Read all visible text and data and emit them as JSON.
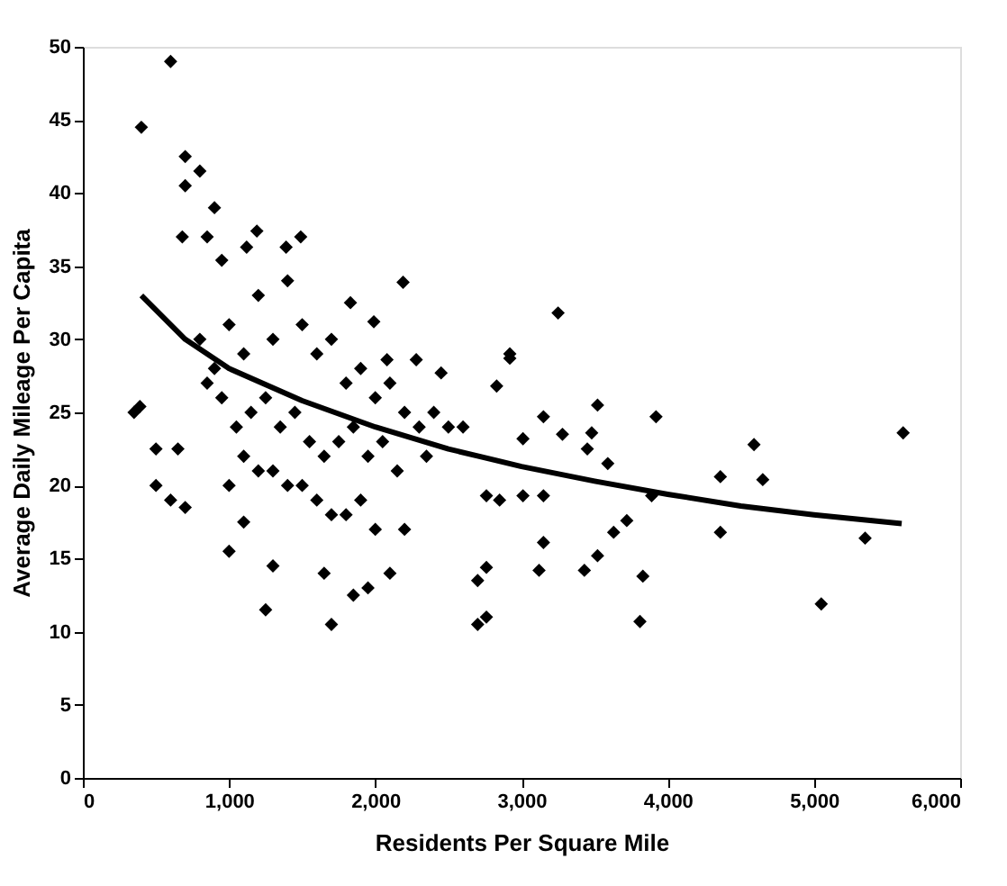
{
  "chart_data": {
    "type": "scatter",
    "xlabel": "Residents Per Square Mile",
    "ylabel": "Average Daily Mileage Per Capita",
    "xlim": [
      0,
      6000
    ],
    "xticks": [
      0,
      {
        "value": 1000,
        "label": "1,000"
      },
      {
        "value": 2000,
        "label": "2,000"
      },
      {
        "value": 3000,
        "label": "3,000"
      },
      {
        "value": 4000,
        "label": "4,000"
      },
      {
        "value": 5000,
        "label": "5,000"
      },
      {
        "value": 6000,
        "label": "6,000"
      }
    ],
    "ylim": [
      0,
      50
    ],
    "yticks": [
      0,
      5,
      10,
      15,
      20,
      25,
      30,
      35,
      40,
      45,
      50
    ],
    "grid": false,
    "marker": "diamond",
    "series": [
      {
        "color": "#000000",
        "x": [
          600,
          400,
          700,
          800,
          700,
          900,
          350,
          500,
          500,
          650,
          600,
          700,
          1000,
          1100,
          1250,
          1300,
          1650,
          1700,
          1850,
          1950,
          2100,
          2200,
          2700,
          2700,
          2850,
          3250,
          2920,
          2830,
          3520,
          3920,
          3150,
          3280,
          3480,
          3010,
          4590,
          5610,
          3450,
          3590,
          4360,
          4650,
          3890,
          3150,
          3010,
          2760,
          3720,
          3630,
          4360,
          5350,
          3520,
          3430,
          3150,
          3120,
          2760,
          3830,
          3810,
          5050,
          2760,
          680,
          850,
          1190,
          1490,
          1390,
          2190,
          1120,
          950,
          1830,
          1990,
          2280,
          2450,
          2080,
          2920,
          390,
          800,
          900,
          1000,
          1100,
          1200,
          1300,
          1400,
          1500,
          1600,
          1700,
          1800,
          1900,
          2000,
          2100,
          2200,
          2300,
          2400,
          2500,
          850,
          950,
          1050,
          1150,
          1250,
          1350,
          1450,
          1550,
          1650,
          1750,
          1850,
          1950,
          2050,
          2150,
          2350,
          1000,
          1200,
          1400,
          1600,
          1800,
          2000,
          1100,
          1300,
          1500,
          1700,
          1900,
          2600
        ],
        "values": [
          49,
          44.5,
          42.5,
          41.5,
          40.5,
          39,
          25,
          20,
          22.5,
          22.5,
          19,
          18.5,
          15.5,
          17.5,
          11.5,
          14.5,
          14,
          10.5,
          12.5,
          13,
          14,
          17,
          13.5,
          10.5,
          19,
          31.8,
          28.7,
          26.8,
          25.5,
          24.7,
          24.7,
          23.5,
          23.6,
          23.2,
          22.8,
          23.6,
          22.5,
          21.5,
          20.6,
          20.4,
          19.3,
          19.3,
          19.3,
          19.3,
          17.6,
          16.8,
          16.8,
          16.4,
          15.2,
          14.2,
          16.1,
          14.2,
          14.4,
          13.8,
          10.7,
          11.9,
          11,
          37,
          37,
          37.4,
          37,
          36.3,
          33.9,
          36.3,
          35.4,
          32.5,
          31.2,
          28.6,
          27.7,
          28.6,
          29,
          25.4,
          30,
          28,
          31,
          29,
          33,
          30,
          34,
          31,
          29,
          30,
          27,
          28,
          26,
          27,
          25,
          24,
          25,
          24,
          27,
          26,
          24,
          25,
          26,
          24,
          25,
          23,
          22,
          23,
          24,
          22,
          23,
          21,
          22,
          20,
          21,
          20,
          19,
          18,
          17,
          22,
          21,
          20,
          18,
          19,
          24
        ]
      },
      {
        "type": "line",
        "marker": "none",
        "line_style": "solid",
        "color": "#000000",
        "x": [
          400,
          700,
          1000,
          1500,
          2000,
          2500,
          3000,
          3500,
          4000,
          4500,
          5000,
          5600
        ],
        "values": [
          33,
          30,
          28,
          25.8,
          24,
          22.5,
          21.3,
          20.3,
          19.4,
          18.6,
          18,
          17.4
        ]
      }
    ]
  }
}
